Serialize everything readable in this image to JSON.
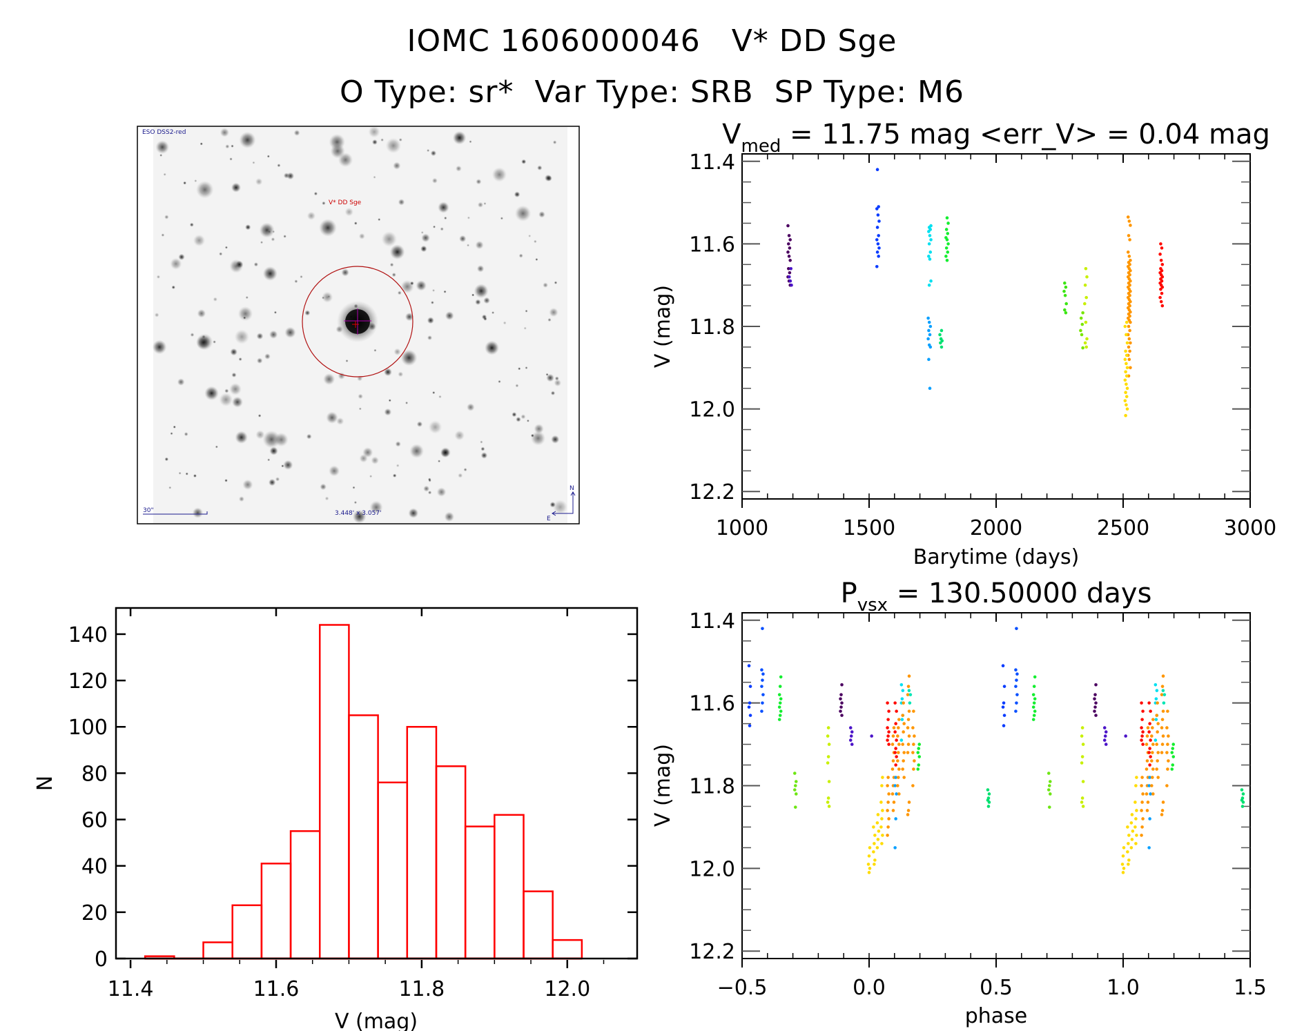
{
  "header": {
    "title": "IOMC 1606000046   V* DD Sge",
    "subtitle": "O Type: sr*  Var Type: SRB  SP Type: M6"
  },
  "finder_chart": {
    "survey_label": "ESO DSS2-red",
    "target_label": "V* DD Sge",
    "scale_label": "30\"",
    "fov_label": "3.448' x 3.057'",
    "north_label": "N",
    "east_label": "E"
  },
  "chart_data": [
    {
      "id": "light-curve",
      "type": "scatter",
      "title_main": "V",
      "title_sub": "med",
      "title_rest": " = 11.75 mag <err_V> = 0.04 mag",
      "xlabel": "Barytime (days)",
      "ylabel": "V (mag)",
      "xlim": [
        1000,
        3000
      ],
      "ylim": [
        12.218,
        11.382
      ],
      "x_ticks": [
        1000,
        1500,
        2000,
        2500,
        3000
      ],
      "x_tick_labels": [
        "1000",
        "1500",
        "2000",
        "2500",
        "3000"
      ],
      "x_minor_step": 100,
      "y_ticks": [
        11.4,
        11.6,
        11.8,
        12.0,
        12.2
      ],
      "y_tick_labels": [
        "11.4",
        "11.6",
        "11.8",
        "12.0",
        "12.2"
      ],
      "y_minor_step": 0.05,
      "clusters": [
        {
          "t": 1185,
          "color": "#4b0060",
          "mags": [
            11.556,
            11.58,
            11.59,
            11.6,
            11.61,
            11.62,
            11.63,
            11.64,
            11.66,
            11.67,
            11.68,
            11.69,
            11.7
          ]
        },
        {
          "t": 1190,
          "color": "#4b14c8",
          "mags": [
            11.66,
            11.68,
            11.69,
            11.7
          ]
        },
        {
          "t": 1535,
          "color": "#0a3cff",
          "mags": [
            11.42,
            11.51,
            11.515,
            11.53,
            11.545,
            11.56,
            11.58,
            11.59,
            11.6,
            11.61,
            11.62,
            11.63,
            11.655
          ]
        },
        {
          "t": 1739,
          "color": "#00e0f0",
          "mags": [
            11.556,
            11.56,
            11.565,
            11.57,
            11.58,
            11.59,
            11.6,
            11.62,
            11.63,
            11.637,
            11.69,
            11.7
          ]
        },
        {
          "t": 1807,
          "color": "#14ee30",
          "mags": [
            11.537,
            11.55,
            11.565,
            11.575,
            11.585,
            11.59,
            11.6,
            11.61,
            11.62,
            11.63,
            11.64
          ]
        },
        {
          "t": 1737,
          "color": "#0aa0ff",
          "mags": [
            11.78,
            11.79,
            11.8,
            11.81,
            11.82,
            11.83,
            11.845,
            11.85,
            11.88,
            11.95
          ]
        },
        {
          "t": 1783,
          "color": "#00e070",
          "mags": [
            11.81,
            11.82,
            11.83,
            11.835,
            11.84,
            11.85
          ]
        },
        {
          "t": 2272,
          "color": "#3ce614",
          "mags": [
            11.695,
            11.705,
            11.715,
            11.725,
            11.745,
            11.76,
            11.767
          ]
        },
        {
          "t": 2337,
          "color": "#78e600",
          "mags": [
            11.767,
            11.78,
            11.795,
            11.81,
            11.82,
            11.852
          ]
        },
        {
          "t": 2353,
          "color": "#c8f000",
          "mags": [
            11.66,
            11.68,
            11.7,
            11.73,
            11.745,
            11.79,
            11.83,
            11.84,
            11.85
          ]
        },
        {
          "t": 2524,
          "color": "#ff9600",
          "mags": [
            11.535,
            11.545,
            11.555,
            11.58,
            11.59,
            11.62,
            11.63,
            11.64,
            11.645,
            11.65,
            11.655,
            11.66,
            11.665,
            11.67,
            11.675,
            11.68,
            11.685,
            11.69,
            11.695,
            11.7,
            11.705,
            11.71,
            11.715,
            11.72,
            11.725,
            11.73,
            11.735,
            11.74,
            11.745,
            11.75,
            11.755,
            11.76,
            11.765,
            11.77,
            11.775,
            11.78,
            11.785,
            11.79,
            11.8,
            11.81,
            11.82,
            11.83,
            11.84,
            11.85,
            11.86,
            11.87,
            11.88,
            11.9,
            11.92
          ]
        },
        {
          "t": 2512,
          "color": "#ffdc00",
          "mags": [
            11.79,
            11.8,
            11.82,
            11.84,
            11.86,
            11.87,
            11.88,
            11.89,
            11.9,
            11.91,
            11.92,
            11.93,
            11.94,
            11.95,
            11.96,
            11.97,
            11.98,
            11.99,
            12.0,
            12.016
          ]
        },
        {
          "t": 2650,
          "color": "#ff0a00",
          "mags": [
            11.6,
            11.61,
            11.625,
            11.64,
            11.65,
            11.66,
            11.665,
            11.67,
            11.675,
            11.68,
            11.685,
            11.69,
            11.695,
            11.7,
            11.705,
            11.71,
            11.72,
            11.73,
            11.74,
            11.75
          ]
        }
      ]
    },
    {
      "id": "histogram",
      "type": "bar",
      "title": "",
      "xlabel": "V (mag)",
      "ylabel": "N",
      "xlim": [
        11.38,
        12.096
      ],
      "ylim": [
        0,
        151.3
      ],
      "x_ticks": [
        11.4,
        11.6,
        11.8,
        12.0
      ],
      "x_tick_labels": [
        "11.4",
        "11.6",
        "11.8",
        "12.0"
      ],
      "x_minor_step": 0.05,
      "y_ticks": [
        0,
        20,
        40,
        60,
        80,
        100,
        120,
        140
      ],
      "y_tick_labels": [
        "0",
        "20",
        "40",
        "60",
        "80",
        "100",
        "120",
        "140"
      ],
      "bar_color": "#ff0000",
      "bin_width": 0.04,
      "bin_starts": [
        11.42,
        11.46,
        11.5,
        11.54,
        11.58,
        11.62,
        11.66,
        11.7,
        11.74,
        11.78,
        11.82,
        11.86,
        11.9,
        11.94,
        11.98
      ],
      "values": [
        1,
        0,
        7,
        23,
        41,
        55,
        144,
        105,
        76,
        100,
        83,
        57,
        62,
        29,
        8
      ]
    },
    {
      "id": "phase-curve",
      "type": "scatter",
      "title_main": "P",
      "title_sub": "vsx",
      "title_rest": " = 130.50000 days",
      "period_days": 130.5,
      "xlabel": "phase",
      "ylabel": "V (mag)",
      "xlim": [
        -0.5,
        1.5
      ],
      "ylim": [
        12.218,
        11.382
      ],
      "x_ticks": [
        -0.5,
        0.0,
        0.5,
        1.0,
        1.5
      ],
      "x_tick_labels": [
        "−0.5",
        "0.0",
        "0.5",
        "1.0",
        "1.5"
      ],
      "x_minor_step": 0.1,
      "y_ticks": [
        11.4,
        11.6,
        11.8,
        12.0,
        12.2
      ],
      "y_tick_labels": [
        "11.4",
        "11.6",
        "11.8",
        "12.0",
        "12.2"
      ],
      "y_minor_step": 0.05,
      "clusters": [
        {
          "phase": -0.47,
          "color": "#0a3cff",
          "mags": [
            11.51,
            11.56,
            11.6,
            11.61,
            11.63,
            11.655
          ]
        },
        {
          "phase": -0.42,
          "color": "#0a50ff",
          "mags": [
            11.42,
            11.52,
            11.53,
            11.545,
            11.56,
            11.58,
            11.6,
            11.62
          ]
        },
        {
          "phase": -0.35,
          "color": "#14ee30",
          "mags": [
            11.537,
            11.56,
            11.58,
            11.59,
            11.6,
            11.61,
            11.62,
            11.63,
            11.64
          ]
        },
        {
          "phase": -0.29,
          "color": "#6ee614",
          "mags": [
            11.77,
            11.79,
            11.8,
            11.81,
            11.82,
            11.852
          ]
        },
        {
          "phase": -0.16,
          "color": "#c8f000",
          "mags": [
            11.66,
            11.68,
            11.7,
            11.73,
            11.745,
            11.79,
            11.83,
            11.84,
            11.85
          ]
        },
        {
          "phase": -0.11,
          "color": "#4b0060",
          "mags": [
            11.556,
            11.58,
            11.59,
            11.6,
            11.61,
            11.62,
            11.63
          ]
        },
        {
          "phase": -0.07,
          "color": "#4b14c8",
          "mags": [
            11.66,
            11.67,
            11.68,
            11.69,
            11.7
          ]
        },
        {
          "phase": 0.01,
          "color": "#4b14c8",
          "mags": [
            11.68
          ]
        },
        {
          "phase": 0.0,
          "color": "#ffdc00",
          "mags": [
            11.95,
            11.97,
            11.99,
            12.0,
            12.01
          ]
        },
        {
          "phase": 0.02,
          "color": "#ffdc00",
          "mags": [
            11.9,
            11.92,
            11.94,
            11.96,
            11.98,
            11.99
          ]
        },
        {
          "phase": 0.035,
          "color": "#ffdc00",
          "mags": [
            11.87,
            11.89,
            11.91,
            11.93,
            11.95
          ]
        },
        {
          "phase": 0.05,
          "color": "#ffdc00",
          "mags": [
            11.78,
            11.8,
            11.84,
            11.86,
            11.88,
            11.9,
            11.92,
            11.94
          ]
        },
        {
          "phase": 0.075,
          "color": "#ff0a00",
          "mags": [
            11.6,
            11.62,
            11.64,
            11.66,
            11.67,
            11.68,
            11.69,
            11.7
          ]
        },
        {
          "phase": 0.075,
          "color": "#ff9600",
          "mags": [
            11.78,
            11.8,
            11.82,
            11.84,
            11.86,
            11.88,
            11.9,
            11.92
          ]
        },
        {
          "phase": 0.095,
          "color": "#ff9600",
          "mags": [
            11.66,
            11.68,
            11.7,
            11.72,
            11.74,
            11.76,
            11.78,
            11.8,
            11.82,
            11.84,
            11.86
          ]
        },
        {
          "phase": 0.105,
          "color": "#ff0a00",
          "mags": [
            11.6,
            11.62,
            11.65,
            11.67,
            11.69,
            11.71,
            11.72,
            11.73,
            11.75
          ]
        },
        {
          "phase": 0.105,
          "color": "#0aa0ff",
          "mags": [
            11.78,
            11.8,
            11.82,
            11.88,
            11.95
          ]
        },
        {
          "phase": 0.115,
          "color": "#ff9600",
          "mags": [
            11.64,
            11.66,
            11.68,
            11.7,
            11.72,
            11.74,
            11.76,
            11.78,
            11.8,
            11.82
          ]
        },
        {
          "phase": 0.13,
          "color": "#00e0f0",
          "mags": [
            11.556,
            11.57,
            11.59,
            11.6,
            11.63,
            11.64,
            11.69
          ]
        },
        {
          "phase": 0.135,
          "color": "#ff9600",
          "mags": [
            11.6,
            11.63,
            11.65,
            11.67,
            11.7,
            11.72,
            11.74,
            11.76,
            11.78
          ]
        },
        {
          "phase": 0.155,
          "color": "#ff9600",
          "mags": [
            11.535,
            11.56,
            11.58,
            11.62,
            11.64,
            11.66,
            11.68,
            11.7,
            11.72,
            11.84,
            11.86,
            11.87
          ]
        },
        {
          "phase": 0.16,
          "color": "#00e6b4",
          "mags": [
            11.57,
            11.58,
            11.6
          ]
        },
        {
          "phase": 0.175,
          "color": "#ff9600",
          "mags": [
            11.62,
            11.66,
            11.68,
            11.7,
            11.72,
            11.74,
            11.76,
            11.8
          ]
        },
        {
          "phase": 0.195,
          "color": "#14ee30",
          "mags": [
            11.7,
            11.71,
            11.72,
            11.73,
            11.75,
            11.76
          ]
        },
        {
          "phase": 0.47,
          "color": "#00e070",
          "mags": [
            11.81,
            11.82,
            11.83,
            11.835,
            11.84,
            11.85
          ]
        }
      ]
    }
  ]
}
